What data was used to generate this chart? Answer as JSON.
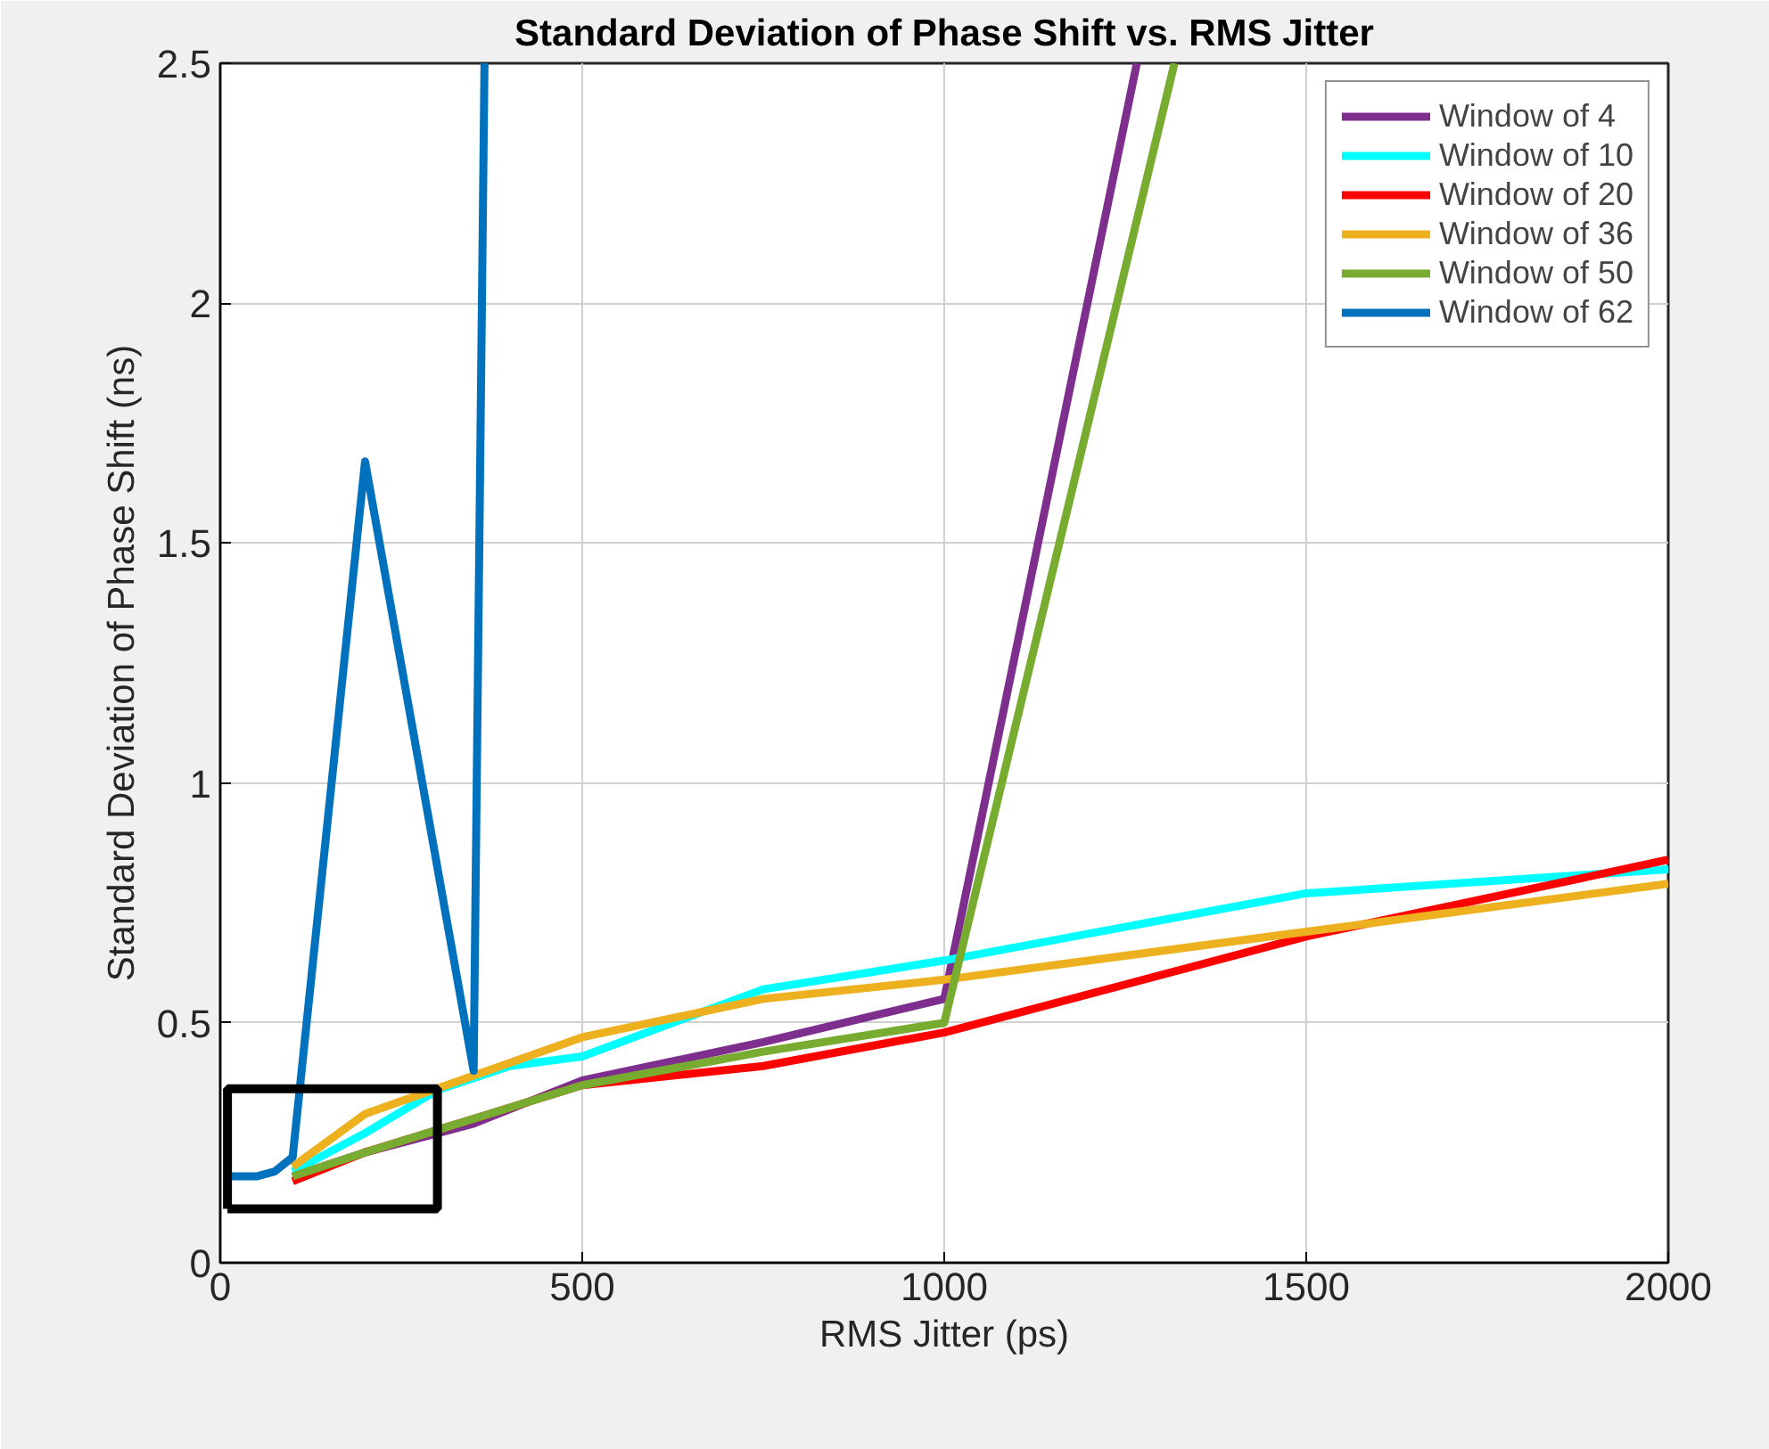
{
  "chart_data": {
    "type": "line",
    "title": "Standard Deviation of Phase Shift vs. RMS Jitter",
    "xlabel": "RMS Jitter (ps)",
    "ylabel": "Standard Deviation of Phase Shift (ns)",
    "xlim": [
      0,
      2000
    ],
    "ylim": [
      0,
      2.5
    ],
    "xticks": [
      0,
      500,
      1000,
      1500,
      2000
    ],
    "yticks": [
      0,
      0.5,
      1,
      1.5,
      2,
      2.5
    ],
    "grid": true,
    "legend": "top right",
    "line_style": "solid",
    "series": [
      {
        "name": "Window of 4",
        "color": "#7e2f8e",
        "x": [
          100,
          200,
          350,
          500,
          750,
          1000,
          1266
        ],
        "values": [
          0.18,
          0.23,
          0.29,
          0.38,
          0.46,
          0.55,
          2.5
        ]
      },
      {
        "name": "Window of 10",
        "color": "#00ffff",
        "x": [
          100,
          200,
          300,
          400,
          500,
          750,
          1000,
          1500,
          2000
        ],
        "values": [
          0.19,
          0.27,
          0.36,
          0.41,
          0.43,
          0.57,
          0.63,
          0.77,
          0.82
        ]
      },
      {
        "name": "Window of 20",
        "color": "#ff0000",
        "x": [
          100,
          200,
          350,
          500,
          750,
          1000,
          1500,
          2000
        ],
        "values": [
          0.17,
          0.23,
          0.3,
          0.37,
          0.41,
          0.48,
          0.68,
          0.84
        ]
      },
      {
        "name": "Window of 36",
        "color": "#edb120",
        "x": [
          100,
          200,
          350,
          500,
          750,
          1000,
          1500,
          2000
        ],
        "values": [
          0.2,
          0.31,
          0.39,
          0.47,
          0.55,
          0.59,
          0.69,
          0.79
        ]
      },
      {
        "name": "Window of 50",
        "color": "#77ac30",
        "x": [
          100,
          200,
          350,
          500,
          750,
          1000,
          1318
        ],
        "values": [
          0.18,
          0.23,
          0.3,
          0.37,
          0.44,
          0.5,
          2.5
        ]
      },
      {
        "name": "Window of 62",
        "color": "#0072bd",
        "x": [
          10,
          50,
          75,
          100,
          200,
          350,
          365
        ],
        "values": [
          0.18,
          0.18,
          0.19,
          0.22,
          1.67,
          0.4,
          2.5
        ]
      }
    ]
  }
}
